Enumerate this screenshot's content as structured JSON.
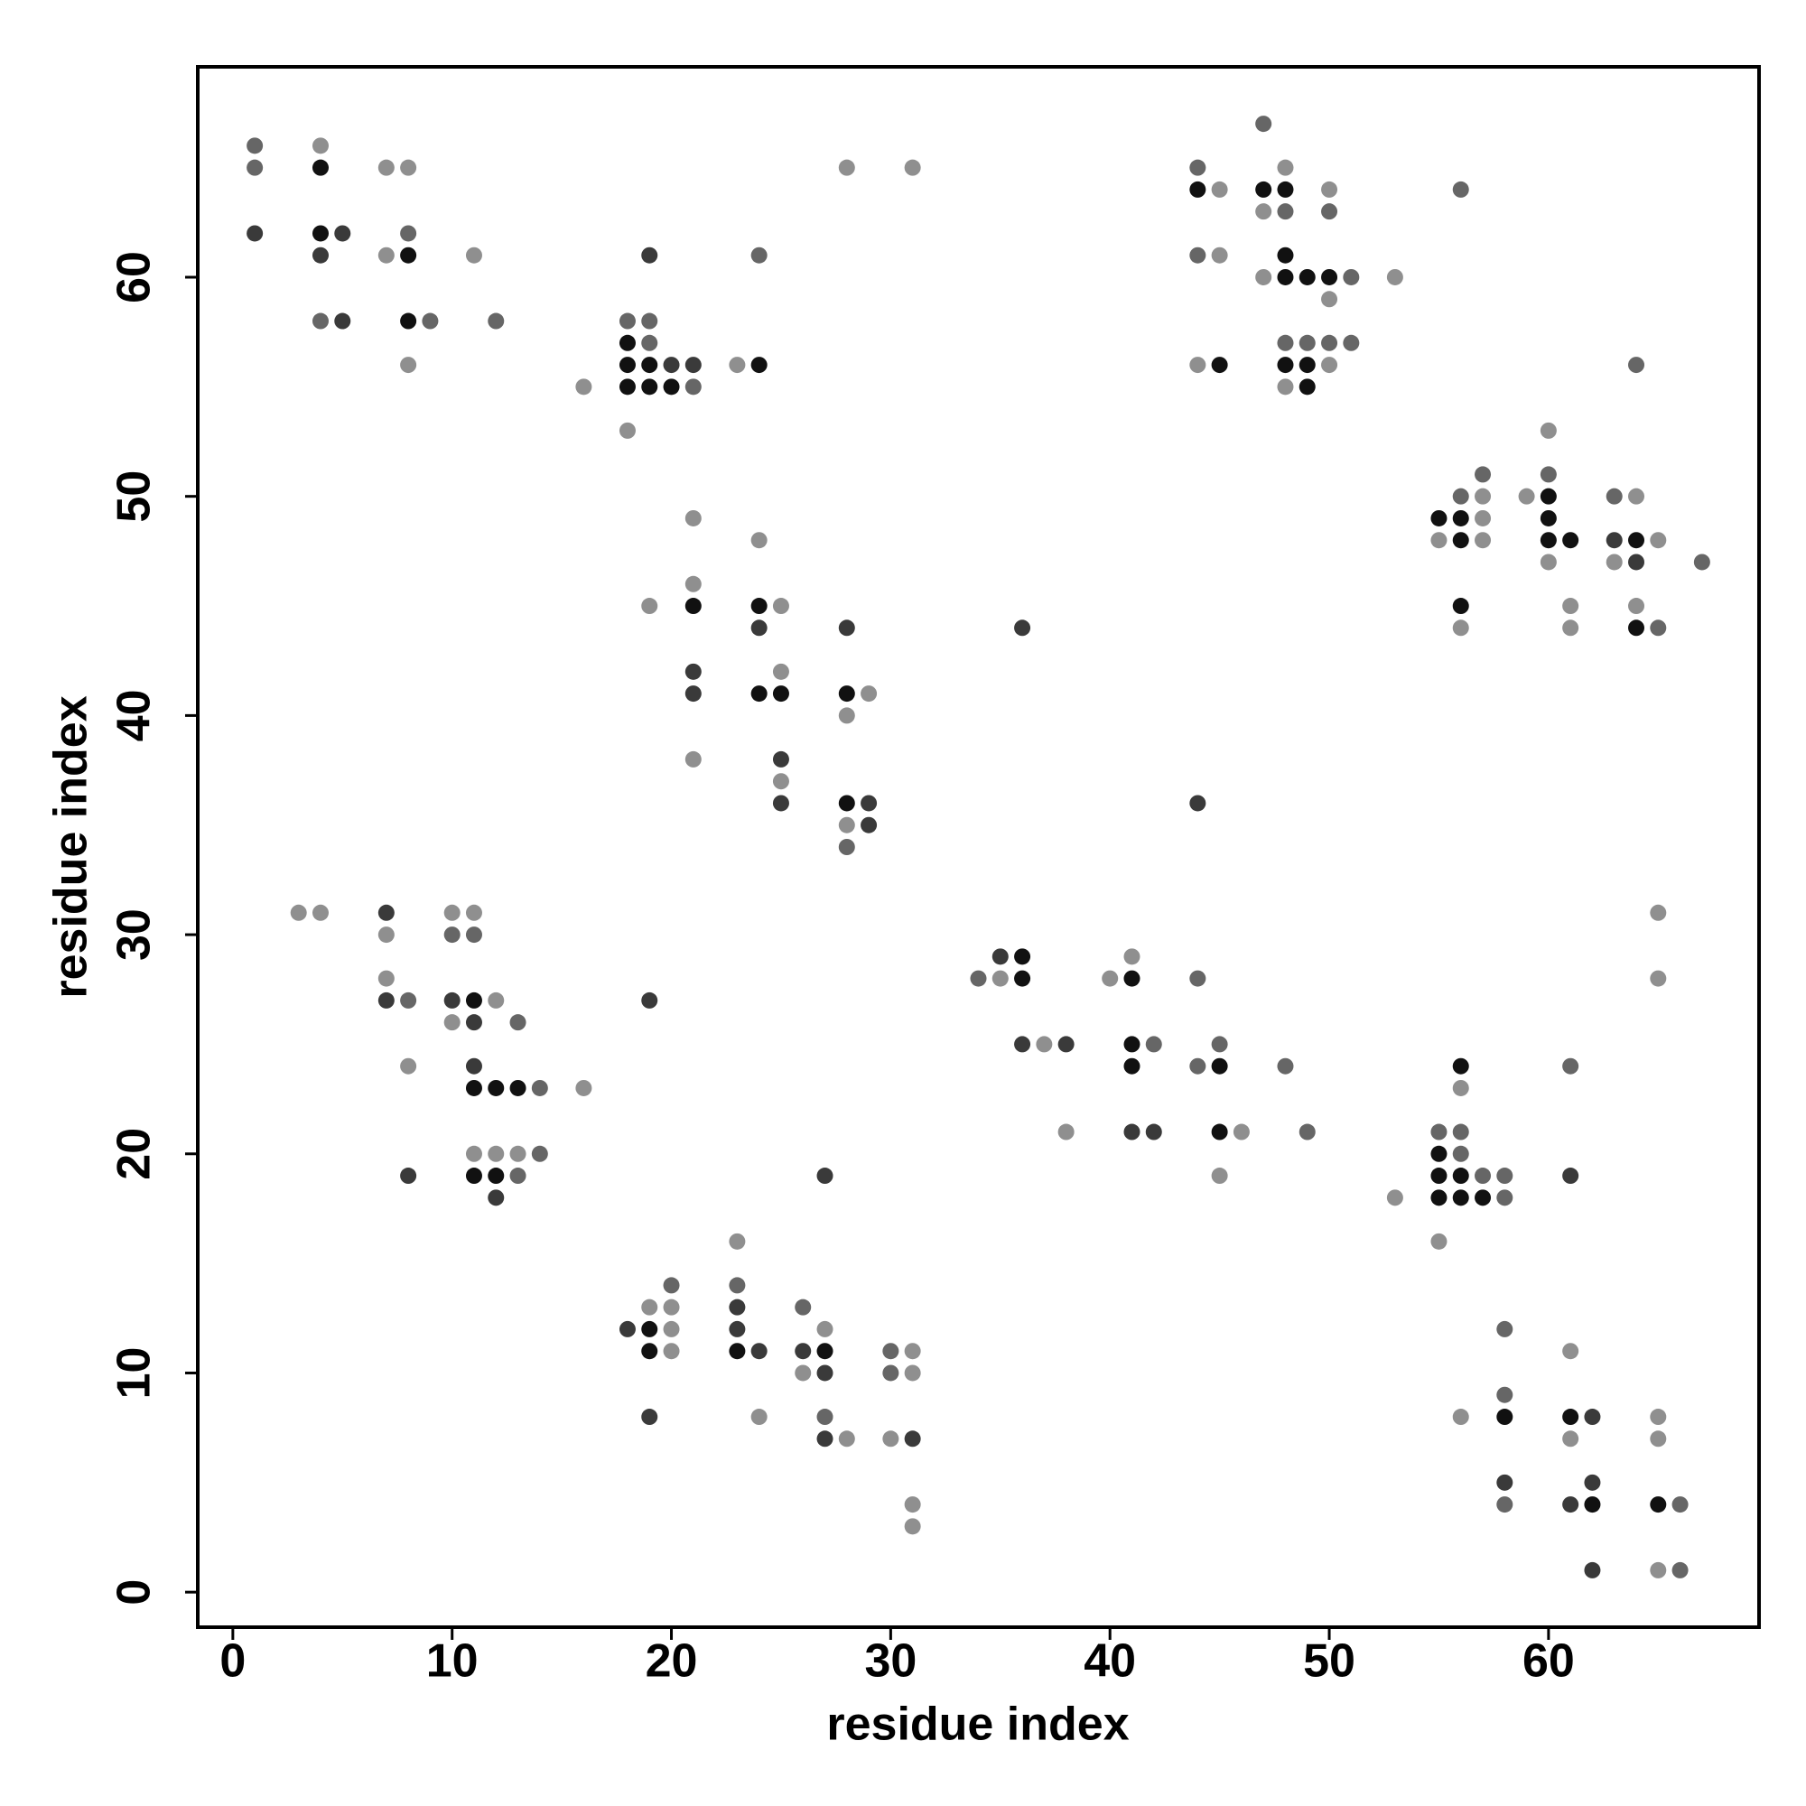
{
  "chart_data": {
    "type": "scatter",
    "x_label": "residue index",
    "y_label": "residue index",
    "xlim": [
      -1.6,
      69.6
    ],
    "ylim": [
      -1.6,
      69.6
    ],
    "xticks": [
      0,
      10,
      20,
      30,
      40,
      50,
      60
    ],
    "yticks": [
      0,
      10,
      20,
      30,
      40,
      50,
      60
    ],
    "series": [
      {
        "color": "#111111",
        "x": [
          4,
          4,
          8,
          8,
          18,
          18,
          19,
          18,
          19,
          20,
          24,
          21,
          24,
          24,
          25,
          28,
          28,
          44,
          47,
          48,
          48,
          48,
          49,
          50,
          45,
          48,
          49,
          49,
          60,
          55,
          56,
          60,
          56,
          60,
          61,
          64,
          56,
          64,
          11,
          11,
          12,
          13,
          11,
          12,
          36,
          36,
          41,
          41,
          41,
          45,
          45,
          56,
          55,
          55,
          56,
          55,
          56,
          57,
          19,
          19,
          23,
          27,
          58,
          61,
          62,
          65
        ],
        "values": [
          65,
          62,
          61,
          58,
          57,
          56,
          56,
          55,
          55,
          55,
          56,
          45,
          45,
          41,
          41,
          41,
          36,
          64,
          64,
          64,
          61,
          60,
          60,
          60,
          56,
          56,
          56,
          55,
          50,
          49,
          49,
          49,
          48,
          48,
          48,
          48,
          45,
          44,
          27,
          23,
          23,
          23,
          19,
          19,
          29,
          28,
          28,
          25,
          24,
          24,
          21,
          24,
          20,
          19,
          19,
          18,
          18,
          18,
          12,
          11,
          11,
          11,
          8,
          8,
          4,
          4
        ]
      },
      {
        "color": "#3a3a3a",
        "x": [
          1,
          5,
          4,
          5,
          19,
          20,
          21,
          21,
          21,
          24,
          25,
          25,
          28,
          29,
          29,
          36,
          44,
          63,
          64,
          7,
          7,
          10,
          11,
          11,
          8,
          12,
          19,
          35,
          36,
          38,
          41,
          42,
          61,
          23,
          18,
          23,
          24,
          26,
          27,
          27,
          19,
          27,
          31,
          62,
          58,
          62,
          61,
          62
        ],
        "values": [
          62,
          62,
          61,
          58,
          61,
          56,
          56,
          42,
          41,
          44,
          38,
          36,
          44,
          36,
          35,
          44,
          36,
          48,
          47,
          31,
          27,
          27,
          26,
          24,
          19,
          18,
          27,
          29,
          25,
          25,
          21,
          21,
          19,
          13,
          12,
          12,
          11,
          11,
          10,
          19,
          8,
          7,
          7,
          8,
          5,
          5,
          4,
          1
        ]
      },
      {
        "color": "#666666",
        "x": [
          1,
          1,
          4,
          8,
          9,
          12,
          24,
          18,
          19,
          19,
          21,
          28,
          47,
          44,
          48,
          50,
          44,
          51,
          48,
          49,
          50,
          51,
          56,
          64,
          57,
          60,
          56,
          63,
          67,
          65,
          10,
          11,
          8,
          13,
          14,
          14,
          13,
          34,
          42,
          44,
          44,
          45,
          48,
          49,
          55,
          56,
          56,
          57,
          58,
          58,
          61,
          20,
          23,
          26,
          30,
          30,
          27,
          58,
          58,
          58,
          66,
          66
        ],
        "values": [
          66,
          65,
          58,
          62,
          58,
          58,
          61,
          58,
          58,
          57,
          55,
          34,
          67,
          65,
          63,
          63,
          61,
          60,
          57,
          57,
          57,
          57,
          64,
          56,
          51,
          51,
          50,
          50,
          47,
          44,
          30,
          30,
          27,
          26,
          23,
          20,
          19,
          28,
          25,
          28,
          24,
          25,
          24,
          21,
          21,
          21,
          20,
          19,
          19,
          18,
          24,
          14,
          14,
          13,
          11,
          10,
          8,
          12,
          9,
          4,
          4,
          1
        ]
      },
      {
        "color": "#8f8f8f",
        "x": [
          4,
          7,
          8,
          7,
          8,
          11,
          28,
          31,
          16,
          18,
          23,
          21,
          21,
          19,
          24,
          25,
          25,
          21,
          25,
          29,
          28,
          28,
          48,
          45,
          50,
          47,
          45,
          47,
          53,
          50,
          44,
          50,
          48,
          60,
          59,
          57,
          64,
          57,
          55,
          57,
          65,
          60,
          63,
          61,
          64,
          56,
          61,
          3,
          4,
          10,
          11,
          7,
          7,
          12,
          10,
          8,
          16,
          11,
          12,
          13,
          35,
          37,
          38,
          40,
          41,
          46,
          45,
          56,
          53,
          55,
          65,
          65,
          23,
          19,
          20,
          20,
          27,
          20,
          31,
          26,
          31,
          24,
          28,
          30,
          31,
          31,
          61,
          56,
          65,
          61,
          65,
          65
        ],
        "values": [
          66,
          65,
          65,
          61,
          56,
          61,
          65,
          65,
          55,
          53,
          56,
          49,
          46,
          45,
          48,
          45,
          42,
          38,
          37,
          41,
          40,
          35,
          65,
          64,
          64,
          63,
          61,
          60,
          60,
          59,
          56,
          56,
          55,
          53,
          50,
          50,
          50,
          49,
          48,
          48,
          48,
          47,
          47,
          45,
          45,
          44,
          44,
          31,
          31,
          31,
          31,
          30,
          28,
          27,
          26,
          24,
          23,
          20,
          20,
          20,
          28,
          25,
          21,
          28,
          29,
          21,
          19,
          23,
          18,
          16,
          31,
          28,
          16,
          13,
          13,
          12,
          12,
          11,
          11,
          10,
          10,
          8,
          7,
          7,
          4,
          3,
          11,
          8,
          8,
          7,
          7,
          1
        ]
      }
    ]
  }
}
